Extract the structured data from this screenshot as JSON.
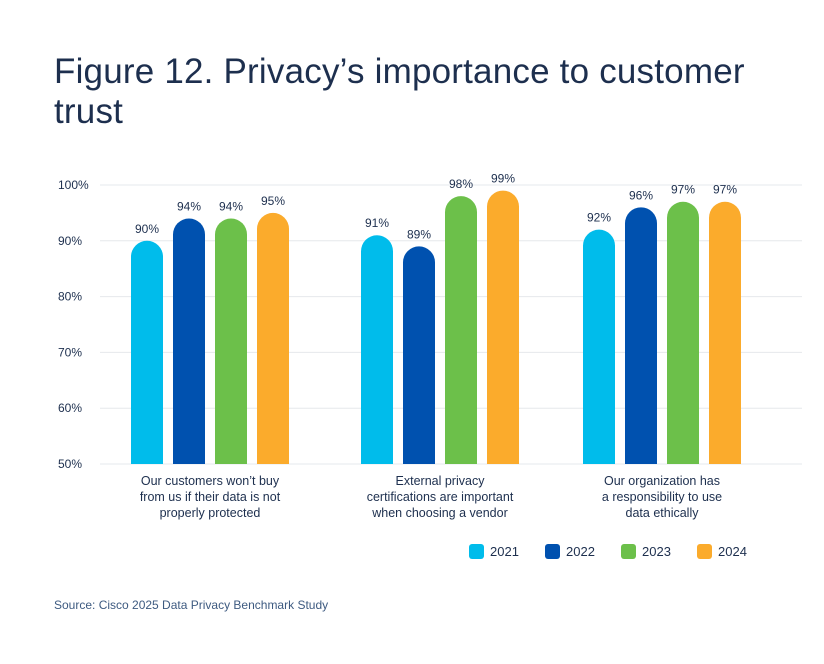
{
  "title": "Figure 12. Privacy’s importance to customer trust",
  "source": "Source: Cisco 2025 Data Privacy Benchmark Study",
  "colors": {
    "2021": "#00bceb",
    "2022": "#0051af",
    "2023": "#6cc04a",
    "2024": "#fbab2c",
    "grid": "#e6e8ec",
    "text": "#1d2f4e"
  },
  "chart_data": {
    "type": "bar",
    "title": "Figure 12. Privacy’s importance to customer trust",
    "xlabel": "",
    "ylabel": "",
    "ylim": [
      50,
      100
    ],
    "yticks": [
      "100%",
      "90%",
      "80%",
      "70%",
      "60%",
      "50%"
    ],
    "ytick_values": [
      100,
      90,
      80,
      70,
      60,
      50
    ],
    "grid": true,
    "legend_position": "bottom-right",
    "categories": [
      [
        "Our customers won’t buy",
        "from us if their data is not",
        "properly protected"
      ],
      [
        "External privacy",
        "certifications are important",
        "when choosing a vendor"
      ],
      [
        "Our organization has",
        "a responsibility to use",
        "data ethically"
      ]
    ],
    "series": [
      {
        "name": "2021",
        "values": [
          90,
          91,
          92
        ],
        "labels": [
          "90%",
          "91%",
          "92%"
        ]
      },
      {
        "name": "2022",
        "values": [
          94,
          89,
          96
        ],
        "labels": [
          "94%",
          "89%",
          "96%"
        ]
      },
      {
        "name": "2023",
        "values": [
          94,
          98,
          97
        ],
        "labels": [
          "94%",
          "98%",
          "97%"
        ]
      },
      {
        "name": "2024",
        "values": [
          95,
          99,
          97
        ],
        "labels": [
          "95%",
          "99%",
          "97%"
        ]
      }
    ]
  }
}
